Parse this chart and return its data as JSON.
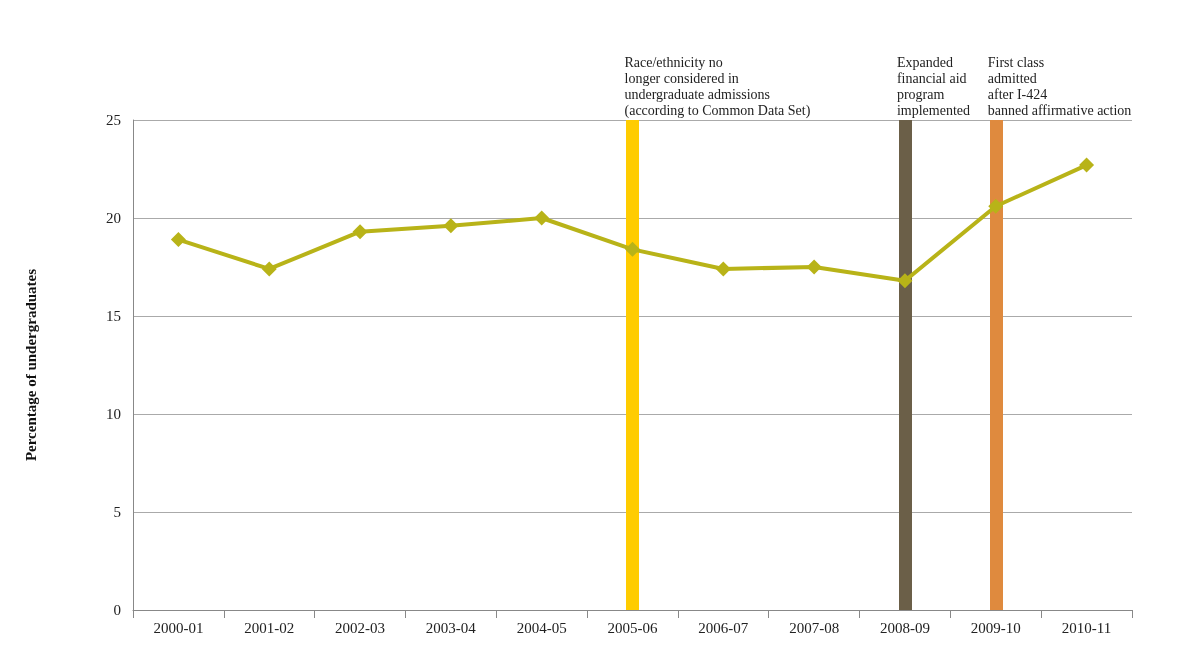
{
  "chart_data": {
    "type": "line",
    "ylabel": "Percentage of undergraduates",
    "categories": [
      "2000-01",
      "2001-02",
      "2002-03",
      "2003-04",
      "2004-05",
      "2005-06",
      "2006-07",
      "2007-08",
      "2008-09",
      "2009-10",
      "2010-11"
    ],
    "series": [
      {
        "color": "#b8b318",
        "values": [
          18.9,
          17.4,
          19.3,
          19.6,
          20.0,
          18.4,
          17.4,
          17.5,
          16.8,
          20.6,
          22.7
        ]
      }
    ],
    "ylim": [
      0,
      25
    ],
    "yticks": [
      0,
      5,
      10,
      15,
      20,
      25
    ],
    "grid": "y",
    "marker": "diamond",
    "line_style": "solid",
    "ref_lines": [
      {
        "axis": "x",
        "value": "2005-06",
        "label": "Race/ethnicity no\nlonger considered in\nundergraduate admissions\n(according to Common Data Set)",
        "color": "#ffcc00"
      },
      {
        "axis": "x",
        "value": "2008-09",
        "label": "Expanded\nfinancial aid\nprogram\nimplemented",
        "color": "#6b5f48"
      },
      {
        "axis": "x",
        "value": "2009-10",
        "label": "First class\nadmitted\nafter I-424\nbanned affirmative action",
        "color": "#df8a3e"
      }
    ]
  }
}
